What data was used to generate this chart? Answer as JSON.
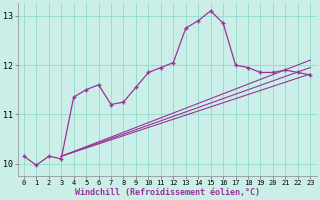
{
  "xlabel": "Windchill (Refroidissement éolien,°C)",
  "background_color": "#cceee8",
  "grid_color": "#99ddcc",
  "line_color": "#993399",
  "xlim": [
    -0.5,
    23.5
  ],
  "ylim": [
    9.75,
    13.25
  ],
  "xtick_labels": [
    "0",
    "1",
    "2",
    "3",
    "4",
    "5",
    "6",
    "7",
    "8",
    "9",
    "10",
    "11",
    "12",
    "13",
    "14",
    "15",
    "16",
    "17",
    "18",
    "19",
    "20",
    "21",
    "22",
    "23"
  ],
  "xtick_pos": [
    0,
    1,
    2,
    3,
    4,
    5,
    6,
    7,
    8,
    9,
    10,
    11,
    12,
    13,
    14,
    15,
    16,
    17,
    18,
    19,
    20,
    21,
    22,
    23
  ],
  "ytick_pos": [
    10,
    11,
    12,
    13
  ],
  "ytick_labels": [
    "10",
    "11",
    "12",
    "13"
  ],
  "main_x": [
    0,
    1,
    2,
    3,
    4,
    5,
    6,
    7,
    8,
    9,
    10,
    11,
    12,
    13,
    14,
    15,
    16,
    17,
    18,
    19,
    20,
    21,
    22,
    23
  ],
  "main_y": [
    10.15,
    9.97,
    10.15,
    10.1,
    11.35,
    11.5,
    11.6,
    11.2,
    11.25,
    11.55,
    11.85,
    11.95,
    12.05,
    12.75,
    12.9,
    13.1,
    12.85,
    12.0,
    11.95,
    11.85,
    11.85,
    11.9,
    11.85,
    11.8
  ],
  "line1_x": [
    3,
    23
  ],
  "line1_y": [
    10.15,
    11.82
  ],
  "line2_x": [
    3,
    23
  ],
  "line2_y": [
    10.15,
    11.95
  ],
  "line3_x": [
    3,
    23
  ],
  "line3_y": [
    10.15,
    12.1
  ]
}
